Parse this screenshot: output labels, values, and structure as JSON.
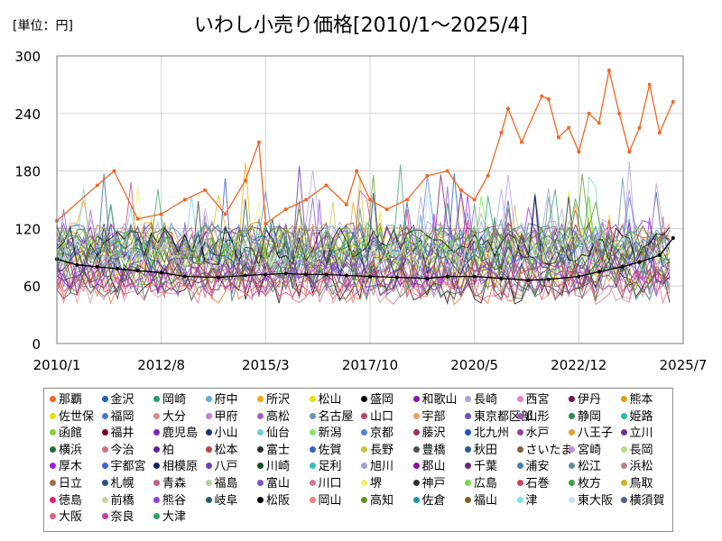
{
  "unit_label": "[単位：円]",
  "title": "いわし小売り価格[2010/1～2025/4]",
  "chart_data": {
    "type": "line",
    "xlim": [
      "2010/1",
      "2025/7"
    ],
    "ylim": [
      0,
      300
    ],
    "yticks": [
      0,
      60,
      120,
      180,
      240,
      300
    ],
    "xticks": [
      "2010/1",
      "2012/8",
      "2015/3",
      "2017/10",
      "2020/5",
      "2022/12",
      "2025/7"
    ],
    "grid": true,
    "legend_position": "bottom",
    "highlight_series": [
      {
        "name": "那覇",
        "color": "#f26522",
        "points": [
          [
            "2010/1",
            128
          ],
          [
            "2011/1",
            165
          ],
          [
            "2011/6",
            180
          ],
          [
            "2012/1",
            130
          ],
          [
            "2012/8",
            135
          ],
          [
            "2013/3",
            150
          ],
          [
            "2013/9",
            160
          ],
          [
            "2014/3",
            135
          ],
          [
            "2014/9",
            170
          ],
          [
            "2015/1",
            210
          ],
          [
            "2015/3",
            125
          ],
          [
            "2015/9",
            140
          ],
          [
            "2016/3",
            150
          ],
          [
            "2016/9",
            165
          ],
          [
            "2017/3",
            145
          ],
          [
            "2017/6",
            180
          ],
          [
            "2017/10",
            150
          ],
          [
            "2018/3",
            140
          ],
          [
            "2018/9",
            150
          ],
          [
            "2019/3",
            175
          ],
          [
            "2019/9",
            180
          ],
          [
            "2020/1",
            160
          ],
          [
            "2020/5",
            150
          ],
          [
            "2020/9",
            175
          ],
          [
            "2021/1",
            220
          ],
          [
            "2021/3",
            245
          ],
          [
            "2021/7",
            210
          ],
          [
            "2022/1",
            258
          ],
          [
            "2022/3",
            255
          ],
          [
            "2022/6",
            215
          ],
          [
            "2022/9",
            225
          ],
          [
            "2022/12",
            200
          ],
          [
            "2023/3",
            240
          ],
          [
            "2023/6",
            230
          ],
          [
            "2023/9",
            285
          ],
          [
            "2023/12",
            240
          ],
          [
            "2024/3",
            200
          ],
          [
            "2024/6",
            225
          ],
          [
            "2024/9",
            270
          ],
          [
            "2024/12",
            220
          ],
          [
            "2025/4",
            252
          ]
        ]
      },
      {
        "name": "松阪",
        "color": "#000000",
        "points": [
          [
            "2010/1",
            88
          ],
          [
            "2010/7",
            82
          ],
          [
            "2011/1",
            80
          ],
          [
            "2011/7",
            78
          ],
          [
            "2012/1",
            76
          ],
          [
            "2012/8",
            74
          ],
          [
            "2013/3",
            70
          ],
          [
            "2014/1",
            69
          ],
          [
            "2014/9",
            71
          ],
          [
            "2015/3",
            72
          ],
          [
            "2015/9",
            73
          ],
          [
            "2016/3",
            72
          ],
          [
            "2016/9",
            72
          ],
          [
            "2017/3",
            71
          ],
          [
            "2017/10",
            70
          ],
          [
            "2018/6",
            69
          ],
          [
            "2019/3",
            68
          ],
          [
            "2019/9",
            70
          ],
          [
            "2020/5",
            70
          ],
          [
            "2021/1",
            68
          ],
          [
            "2021/9",
            66
          ],
          [
            "2022/3",
            67
          ],
          [
            "2022/12",
            70
          ],
          [
            "2023/6",
            75
          ],
          [
            "2024/1",
            80
          ],
          [
            "2024/6",
            85
          ],
          [
            "2024/12",
            92
          ],
          [
            "2025/4",
            110
          ]
        ]
      }
    ],
    "background_band": {
      "min": 40,
      "max": 160,
      "typical_low": 60,
      "typical_high": 110
    },
    "series": [
      {
        "name": "那覇",
        "color": "#f26522"
      },
      {
        "name": "金沢",
        "color": "#1f5fbf"
      },
      {
        "name": "岡崎",
        "color": "#1a9e77"
      },
      {
        "name": "府中",
        "color": "#5aaee0"
      },
      {
        "name": "所沢",
        "color": "#f7a600"
      },
      {
        "name": "松山",
        "color": "#e8e000"
      },
      {
        "name": "盛岡",
        "color": "#000000"
      },
      {
        "name": "和歌山",
        "color": "#8b0fa8"
      },
      {
        "name": "長崎",
        "color": "#b09cd6"
      },
      {
        "name": "西宮",
        "color": "#f27bbd"
      },
      {
        "name": "伊丹",
        "color": "#7a0f5a"
      },
      {
        "name": "熊本",
        "color": "#d9a010"
      },
      {
        "name": "佐世保",
        "color": "#e8e000"
      },
      {
        "name": "福岡",
        "color": "#4a7bd0"
      },
      {
        "name": "大分",
        "color": "#d98a8a"
      },
      {
        "name": "甲府",
        "color": "#c77ed9"
      },
      {
        "name": "高松",
        "color": "#a060c0"
      },
      {
        "name": "名古屋",
        "color": "#7090c0"
      },
      {
        "name": "山口",
        "color": "#c0406a"
      },
      {
        "name": "宇部",
        "color": "#f0a060"
      },
      {
        "name": "東京都区部",
        "color": "#6a50c0"
      },
      {
        "name": "山形",
        "color": "#9b59b6"
      },
      {
        "name": "静岡",
        "color": "#2e8b57"
      },
      {
        "name": "姫路",
        "color": "#20c0a0"
      },
      {
        "name": "函館",
        "color": "#80d040"
      },
      {
        "name": "福井",
        "color": "#800020"
      },
      {
        "name": "鹿児島",
        "color": "#8020c0"
      },
      {
        "name": "小山",
        "color": "#203080"
      },
      {
        "name": "仙台",
        "color": "#70d0d0"
      },
      {
        "name": "新潟",
        "color": "#90e070"
      },
      {
        "name": "京都",
        "color": "#5080e0"
      },
      {
        "name": "藤沢",
        "color": "#a03060"
      },
      {
        "name": "北九州",
        "color": "#2050c0"
      },
      {
        "name": "水戸",
        "color": "#a040a0"
      },
      {
        "name": "八王子",
        "color": "#e0a030"
      },
      {
        "name": "立川",
        "color": "#7030a0"
      },
      {
        "name": "横浜",
        "color": "#207040"
      },
      {
        "name": "今治",
        "color": "#d07080"
      },
      {
        "name": "柏",
        "color": "#6020a0"
      },
      {
        "name": "松本",
        "color": "#c04040"
      },
      {
        "name": "富士",
        "color": "#303030"
      },
      {
        "name": "佐賀",
        "color": "#3060d0"
      },
      {
        "name": "長野",
        "color": "#d0c040"
      },
      {
        "name": "豊橋",
        "color": "#505050"
      },
      {
        "name": "秋田",
        "color": "#2a5a8a"
      },
      {
        "name": "さいたま",
        "color": "#806040"
      },
      {
        "name": "宮崎",
        "color": "#c090e0"
      },
      {
        "name": "長岡",
        "color": "#b0e080"
      },
      {
        "name": "厚木",
        "color": "#a020e0"
      },
      {
        "name": "宇都宮",
        "color": "#4060e0"
      },
      {
        "name": "相模原",
        "color": "#102060"
      },
      {
        "name": "八戸",
        "color": "#7040c0"
      },
      {
        "name": "川崎",
        "color": "#105020"
      },
      {
        "name": "足利",
        "color": "#30c0c0"
      },
      {
        "name": "旭川",
        "color": "#a0a0e0"
      },
      {
        "name": "郡山",
        "color": "#9010a0"
      },
      {
        "name": "千葉",
        "color": "#702080"
      },
      {
        "name": "浦安",
        "color": "#4080b0"
      },
      {
        "name": "松江",
        "color": "#6090a0"
      },
      {
        "name": "浜松",
        "color": "#c08080"
      },
      {
        "name": "日立",
        "color": "#a07040"
      },
      {
        "name": "札幌",
        "color": "#2a5080"
      },
      {
        "name": "青森",
        "color": "#c06080"
      },
      {
        "name": "福島",
        "color": "#b0d0a0"
      },
      {
        "name": "富山",
        "color": "#8050d0"
      },
      {
        "name": "川口",
        "color": "#e07090"
      },
      {
        "name": "堺",
        "color": "#f0f060"
      },
      {
        "name": "神戸",
        "color": "#303030"
      },
      {
        "name": "広島",
        "color": "#70e040"
      },
      {
        "name": "石巻",
        "color": "#d04060"
      },
      {
        "name": "枚方",
        "color": "#40a040"
      },
      {
        "name": "鳥取",
        "color": "#d0b020"
      },
      {
        "name": "徳島",
        "color": "#e02070"
      },
      {
        "name": "前橋",
        "color": "#d0d0a0"
      },
      {
        "name": "熊谷",
        "color": "#9040e0"
      },
      {
        "name": "岐阜",
        "color": "#206070"
      },
      {
        "name": "松阪",
        "color": "#000000"
      },
      {
        "name": "岡山",
        "color": "#f08080"
      },
      {
        "name": "高知",
        "color": "#609020"
      },
      {
        "name": "佐倉",
        "color": "#2090c0"
      },
      {
        "name": "福山",
        "color": "#806020"
      },
      {
        "name": "津",
        "color": "#80e0f0"
      },
      {
        "name": "東大阪",
        "color": "#c0e0f0"
      },
      {
        "name": "横須賀",
        "color": "#506090"
      },
      {
        "name": "大阪",
        "color": "#e06080"
      },
      {
        "name": "奈良",
        "color": "#c040a0"
      },
      {
        "name": "大津",
        "color": "#30a060"
      }
    ]
  }
}
